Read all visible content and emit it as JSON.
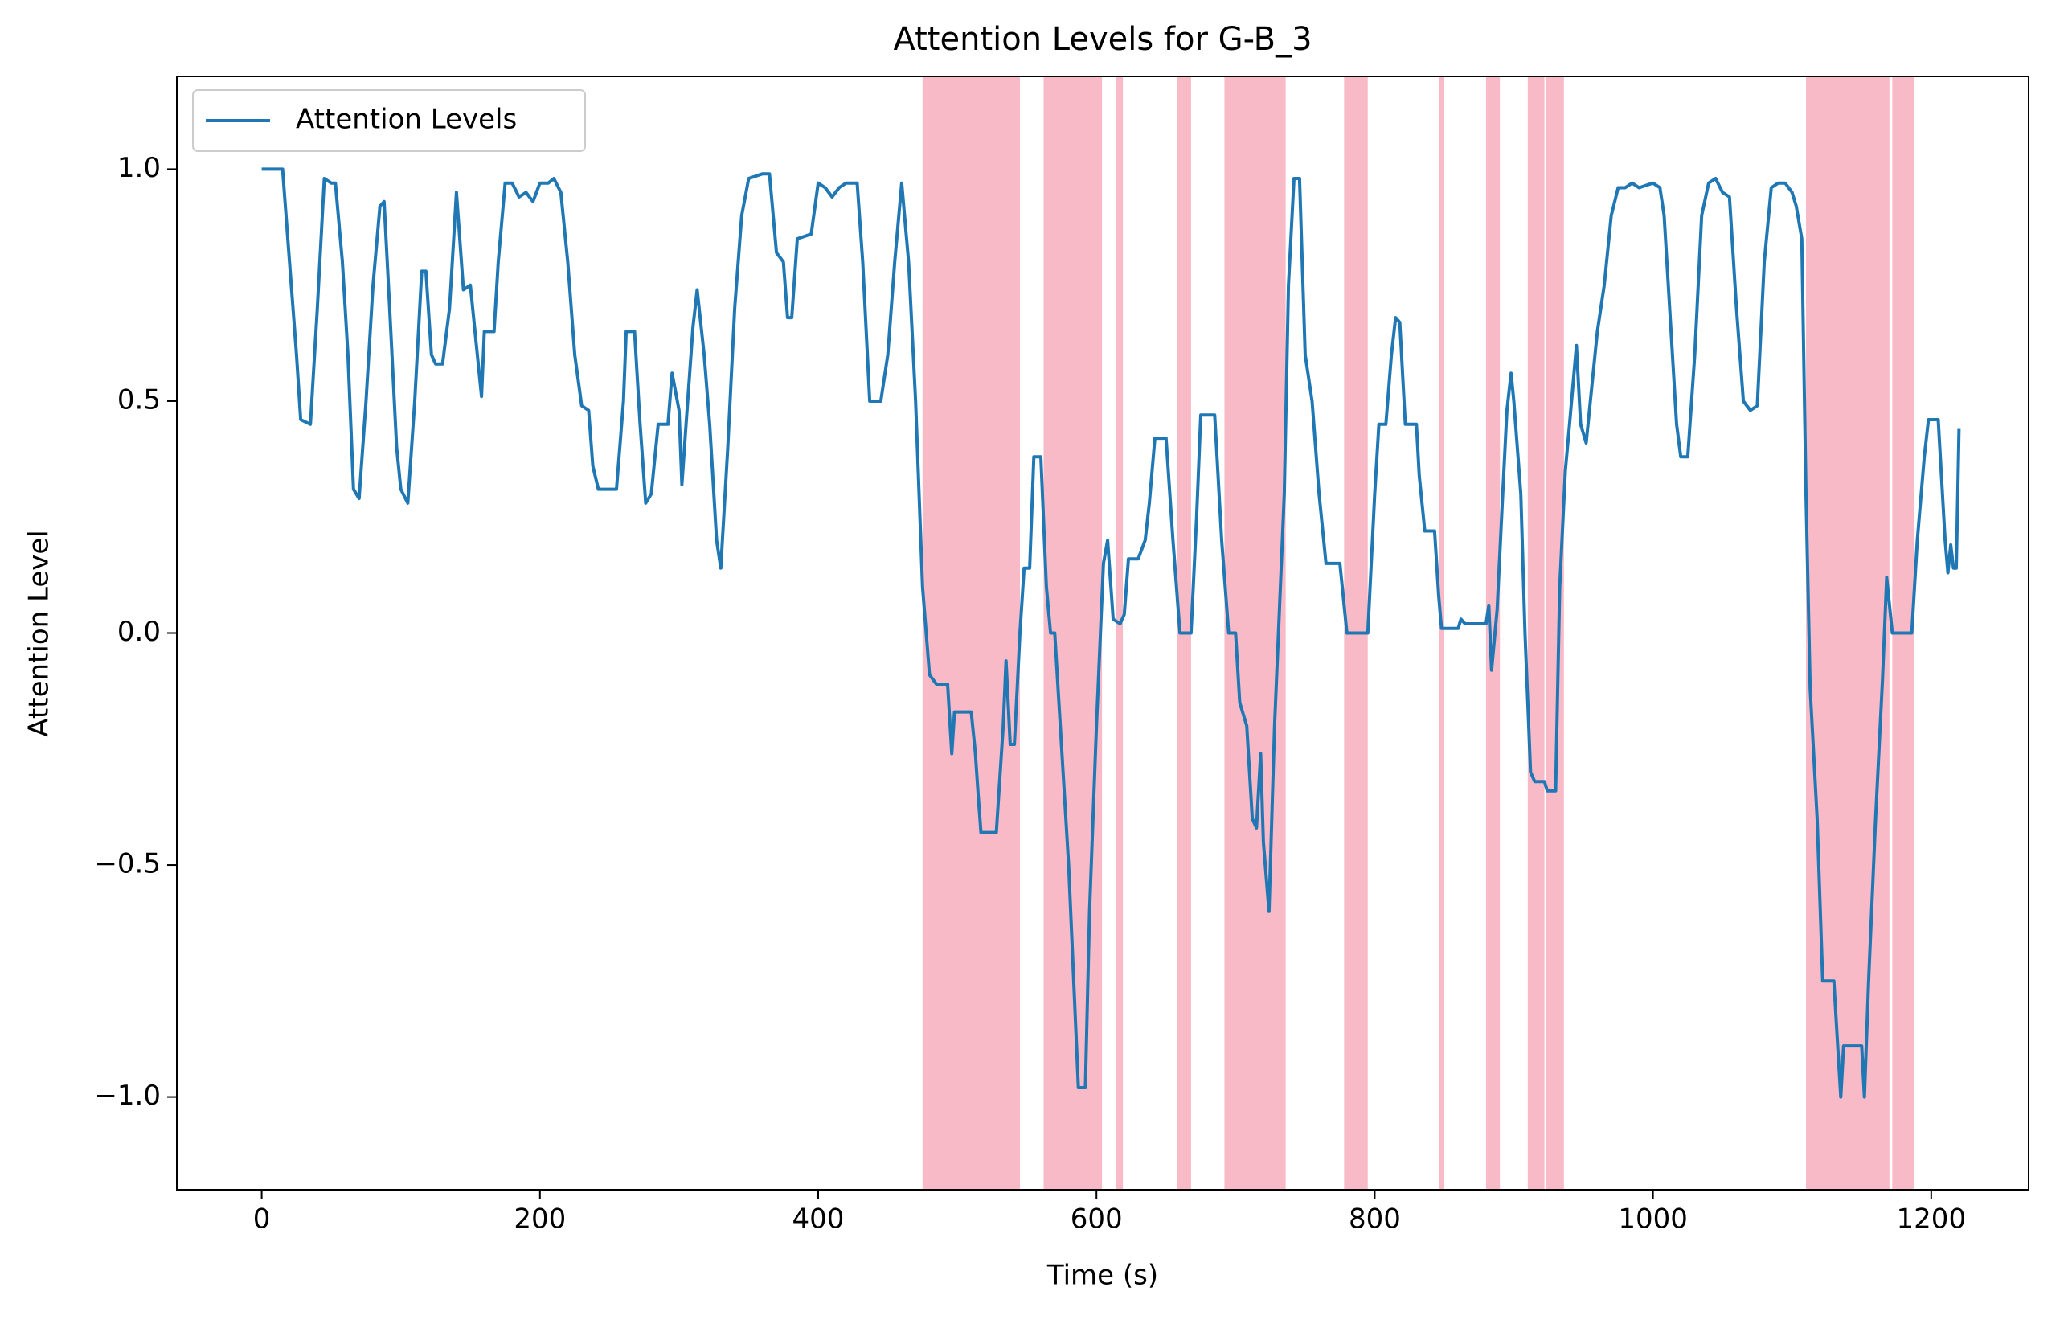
{
  "chart_data": {
    "type": "line",
    "title": "Attention Levels for G-B_3",
    "xlabel": "Time (s)",
    "ylabel": "Attention Level",
    "xlim": [
      -61,
      1270
    ],
    "ylim": [
      -1.2,
      1.2
    ],
    "xticks": [
      0,
      200,
      400,
      600,
      800,
      1000,
      1200
    ],
    "yticks": [
      {
        "value": -1.0,
        "label": "−1.0"
      },
      {
        "value": -0.5,
        "label": "−0.5"
      },
      {
        "value": 0.0,
        "label": "0.0"
      },
      {
        "value": 0.5,
        "label": "0.5"
      },
      {
        "value": 1.0,
        "label": "1.0"
      }
    ],
    "legend": "upper left",
    "span_color": "#f9bac8",
    "spans": [
      [
        475,
        545
      ],
      [
        562,
        604
      ],
      [
        614,
        619
      ],
      [
        658,
        668
      ],
      [
        692,
        736
      ],
      [
        778,
        795
      ],
      [
        846,
        850
      ],
      [
        880,
        890
      ],
      [
        910,
        922
      ],
      [
        923,
        936
      ],
      [
        1110,
        1170
      ],
      [
        1172,
        1188
      ]
    ],
    "x": [
      0,
      15,
      20,
      25,
      28,
      35,
      40,
      45,
      50,
      53,
      58,
      62,
      66,
      70,
      75,
      80,
      85,
      88,
      92,
      97,
      100,
      105,
      110,
      115,
      118,
      122,
      125,
      130,
      135,
      140,
      145,
      150,
      155,
      158,
      160,
      167,
      170,
      175,
      180,
      185,
      190,
      195,
      200,
      206,
      210,
      215,
      220,
      225,
      230,
      235,
      238,
      242,
      255,
      260,
      262,
      268,
      272,
      276,
      280,
      285,
      292,
      295,
      300,
      302,
      305,
      310,
      313,
      318,
      322,
      327,
      330,
      335,
      340,
      345,
      350,
      360,
      365,
      370,
      375,
      378,
      381,
      385,
      395,
      400,
      405,
      410,
      415,
      420,
      428,
      432,
      437,
      445,
      450,
      455,
      460,
      465,
      470,
      475,
      480,
      485,
      493,
      496,
      498,
      510,
      513,
      515,
      517,
      528,
      533,
      535,
      538,
      541,
      545,
      548,
      552,
      555,
      560,
      564,
      567,
      570,
      580,
      587,
      592,
      595,
      600,
      605,
      608,
      612,
      617,
      620,
      623,
      630,
      635,
      638,
      642,
      650,
      655,
      660,
      668,
      672,
      675,
      685,
      690,
      695,
      700,
      703,
      708,
      712,
      715,
      718,
      720,
      724,
      728,
      735,
      738,
      742,
      746,
      750,
      755,
      760,
      765,
      775,
      780,
      795,
      800,
      803,
      808,
      812,
      815,
      818,
      822,
      830,
      832,
      836,
      843,
      846,
      848,
      860,
      862,
      865,
      880,
      882,
      884,
      888,
      892,
      895,
      898,
      900,
      905,
      908,
      912,
      915,
      922,
      924,
      930,
      933,
      937,
      940,
      945,
      948,
      952,
      955,
      960,
      965,
      970,
      975,
      980,
      985,
      990,
      1000,
      1005,
      1008,
      1012,
      1017,
      1020,
      1025,
      1030,
      1035,
      1040,
      1045,
      1050,
      1055,
      1060,
      1065,
      1070,
      1075,
      1080,
      1085,
      1090,
      1095,
      1100,
      1103,
      1107,
      1110,
      1113,
      1118,
      1122,
      1130,
      1133,
      1135,
      1137,
      1150,
      1152,
      1155,
      1160,
      1165,
      1168,
      1172,
      1186,
      1190,
      1195,
      1198,
      1205,
      1210,
      1212,
      1214,
      1216,
      1218,
      1220
    ],
    "series": [
      {
        "name": "Attention Levels",
        "color": "#1f77b4",
        "values": [
          1.0,
          1.0,
          0.8,
          0.6,
          0.46,
          0.45,
          0.7,
          0.98,
          0.97,
          0.97,
          0.8,
          0.6,
          0.31,
          0.29,
          0.5,
          0.75,
          0.92,
          0.93,
          0.7,
          0.4,
          0.31,
          0.28,
          0.5,
          0.78,
          0.78,
          0.6,
          0.58,
          0.58,
          0.7,
          0.95,
          0.74,
          0.75,
          0.6,
          0.51,
          0.65,
          0.65,
          0.8,
          0.97,
          0.97,
          0.94,
          0.95,
          0.93,
          0.97,
          0.97,
          0.98,
          0.95,
          0.8,
          0.6,
          0.49,
          0.48,
          0.36,
          0.31,
          0.31,
          0.5,
          0.65,
          0.65,
          0.45,
          0.28,
          0.3,
          0.45,
          0.45,
          0.56,
          0.48,
          0.32,
          0.45,
          0.66,
          0.74,
          0.6,
          0.45,
          0.2,
          0.14,
          0.4,
          0.7,
          0.9,
          0.98,
          0.99,
          0.99,
          0.82,
          0.8,
          0.68,
          0.68,
          0.85,
          0.86,
          0.97,
          0.96,
          0.94,
          0.96,
          0.97,
          0.97,
          0.8,
          0.5,
          0.5,
          0.6,
          0.8,
          0.97,
          0.8,
          0.5,
          0.1,
          -0.09,
          -0.11,
          -0.11,
          -0.26,
          -0.17,
          -0.17,
          -0.26,
          -0.35,
          -0.43,
          -0.43,
          -0.2,
          -0.06,
          -0.24,
          -0.24,
          0.0,
          0.14,
          0.14,
          0.38,
          0.38,
          0.1,
          0.0,
          0.0,
          -0.5,
          -0.98,
          -0.98,
          -0.6,
          -0.2,
          0.15,
          0.2,
          0.03,
          0.02,
          0.04,
          0.16,
          0.16,
          0.2,
          0.28,
          0.42,
          0.42,
          0.2,
          0.0,
          0.0,
          0.25,
          0.47,
          0.47,
          0.2,
          0.0,
          0.0,
          -0.15,
          -0.2,
          -0.4,
          -0.42,
          -0.26,
          -0.45,
          -0.6,
          -0.2,
          0.3,
          0.75,
          0.98,
          0.98,
          0.6,
          0.5,
          0.3,
          0.15,
          0.15,
          0.0,
          0.0,
          0.3,
          0.45,
          0.45,
          0.6,
          0.68,
          0.67,
          0.45,
          0.45,
          0.34,
          0.22,
          0.22,
          0.08,
          0.01,
          0.01,
          0.03,
          0.02,
          0.02,
          0.06,
          -0.08,
          0.05,
          0.3,
          0.48,
          0.56,
          0.5,
          0.3,
          0.0,
          -0.3,
          -0.32,
          -0.32,
          -0.34,
          -0.34,
          0.1,
          0.35,
          0.45,
          0.62,
          0.45,
          0.41,
          0.5,
          0.65,
          0.75,
          0.9,
          0.96,
          0.96,
          0.97,
          0.96,
          0.97,
          0.96,
          0.9,
          0.7,
          0.45,
          0.38,
          0.38,
          0.6,
          0.9,
          0.97,
          0.98,
          0.95,
          0.94,
          0.7,
          0.5,
          0.48,
          0.49,
          0.8,
          0.96,
          0.97,
          0.97,
          0.95,
          0.92,
          0.85,
          0.3,
          -0.12,
          -0.4,
          -0.75,
          -0.75,
          -0.9,
          -1.0,
          -0.89,
          -0.89,
          -1.0,
          -0.75,
          -0.4,
          -0.1,
          0.12,
          0.0,
          0.0,
          0.2,
          0.38,
          0.46,
          0.46,
          0.2,
          0.13,
          0.19,
          0.14,
          0.14,
          0.44
        ]
      }
    ]
  }
}
